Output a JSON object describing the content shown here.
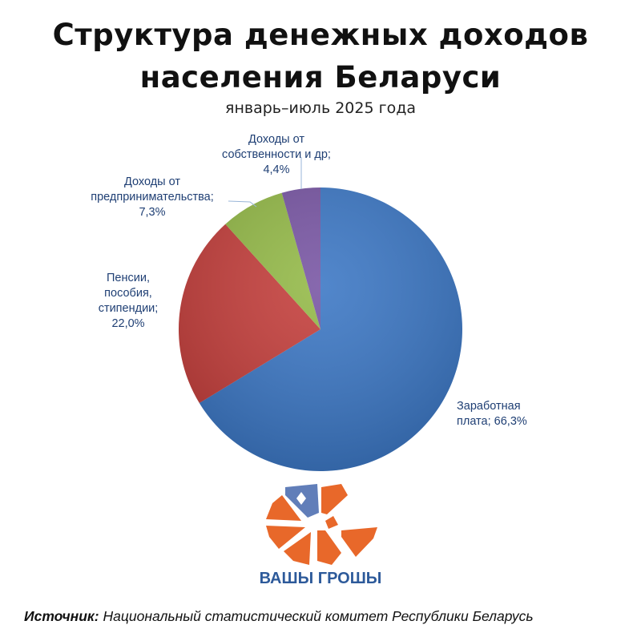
{
  "chart_data": {
    "type": "pie",
    "title_lines": [
      "Структура денежных доходов",
      "населения Беларуси"
    ],
    "subtitle": "январь–июль 2025 года",
    "start": "top",
    "direction": "clockwise",
    "slices": [
      {
        "label_lines": [
          "Заработная",
          "плата; 66,3%"
        ],
        "value": 66.3,
        "color": "#3a76c4"
      },
      {
        "label_lines": [
          "Пенсии,",
          "пособия,",
          "стипендии;",
          "22,0%"
        ],
        "value": 22.0,
        "color": "#c43d3a"
      },
      {
        "label_lines": [
          "Доходы от",
          "предпринимательства;",
          "7,3%"
        ],
        "value": 7.3,
        "color": "#93b946"
      },
      {
        "label_lines": [
          "Доходы от",
          "собственности и др;",
          "4,4%"
        ],
        "value": 4.4,
        "color": "#7754a3"
      }
    ]
  },
  "logo": {
    "text": "ВАШЫ ГРОШЫ",
    "color": "#e8682a"
  },
  "source": {
    "label": "Источник:",
    "text": "Национальный статистический комитет Республики Беларусь"
  }
}
